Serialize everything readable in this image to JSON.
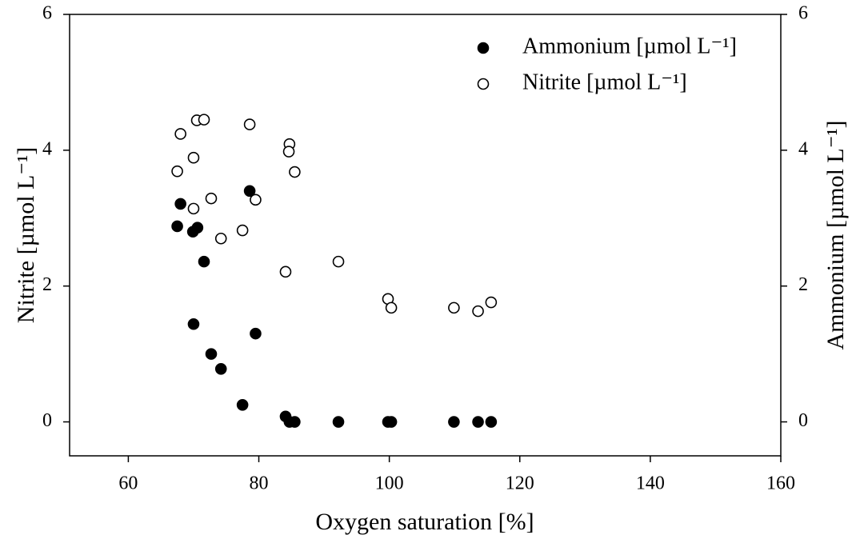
{
  "chart_data": {
    "type": "scatter",
    "x_label": "Oxygen saturation [%]",
    "y_label": "Nitrite [µmol L⁻¹]",
    "y2_label": "Ammonium [µmol L⁻¹]",
    "xlim": [
      51,
      160
    ],
    "xticks": [
      60,
      80,
      100,
      120,
      140,
      160
    ],
    "ylim": [
      -0.5,
      6
    ],
    "yticks": [
      0,
      2,
      4,
      6
    ],
    "y2lim": [
      -0.5,
      6
    ],
    "y2ticks": [
      0,
      2,
      4,
      6
    ],
    "legend": "upper right",
    "series": [
      {
        "name": "Ammonium [µmol L⁻¹]",
        "color": "#000000",
        "marker": "filled",
        "axis": "y2",
        "x": [
          67.5,
          68.0,
          69.9,
          70.6,
          71.6,
          70.0,
          72.7,
          74.2,
          77.5,
          78.6,
          79.5,
          84.1,
          84.7,
          85.5,
          92.2,
          99.8,
          100.3,
          109.9,
          113.6,
          115.6
        ],
        "values": [
          2.88,
          3.21,
          2.8,
          2.86,
          2.36,
          1.44,
          1.0,
          0.78,
          0.25,
          3.4,
          1.3,
          0.08,
          0,
          0,
          0,
          0,
          0,
          0,
          0,
          0
        ]
      },
      {
        "name": "Nitrite [µmol L⁻¹]",
        "color": "#000000",
        "marker": "open",
        "x": [
          67.5,
          68.0,
          70.0,
          70.0,
          70.5,
          71.6,
          72.7,
          74.2,
          77.5,
          78.6,
          79.5,
          84.1,
          84.7,
          84.6,
          85.5,
          92.2,
          99.8,
          100.3,
          109.9,
          113.6,
          115.6
        ],
        "values": [
          3.69,
          4.24,
          3.89,
          3.14,
          4.44,
          4.45,
          3.29,
          2.7,
          2.82,
          4.38,
          3.27,
          2.21,
          4.09,
          3.98,
          3.68,
          2.36,
          1.81,
          1.68,
          1.68,
          1.63,
          1.76
        ]
      }
    ]
  }
}
